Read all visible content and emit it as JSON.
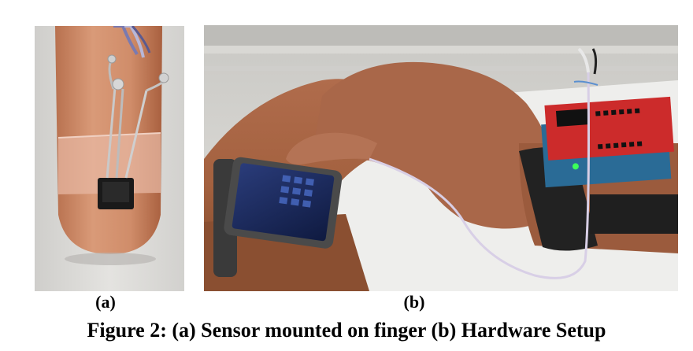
{
  "figure": {
    "panels": [
      {
        "label": "(a)",
        "icon": "finger-sensor-photo"
      },
      {
        "label": "(b)",
        "icon": "hardware-setup-photo"
      }
    ],
    "caption": "Figure 2: (a) Sensor mounted on finger (b) Hardware Setup"
  }
}
